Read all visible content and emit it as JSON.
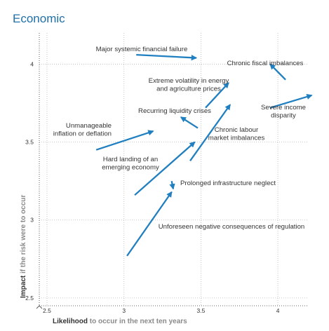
{
  "chart_data": {
    "type": "arrow-scatter",
    "title": "Economic",
    "xlabel": {
      "strong": "Likelihood",
      "soft": " to occur in the next ten years"
    },
    "ylabel": {
      "strong": "Impact",
      "soft": " if the risk were to occur"
    },
    "xlim": [
      2.45,
      4.2
    ],
    "ylim": [
      2.45,
      4.2
    ],
    "xticks": [
      "2.5",
      "3",
      "3.5",
      "4"
    ],
    "yticks": [
      "2.5",
      "3",
      "3.5",
      "4"
    ],
    "grid": true,
    "colors": {
      "arrow": "#1f7fc0",
      "title": "#1f6fa8"
    },
    "risks": [
      {
        "name": "Major systemic financial failure",
        "lines": [
          "Major systemic financial failure"
        ],
        "from": [
          3.08,
          4.06
        ],
        "to": [
          3.47,
          4.04
        ]
      },
      {
        "name": "Chronic fiscal imbalances",
        "lines": [
          "Chronic fiscal imbalances"
        ],
        "from": [
          4.05,
          3.9
        ],
        "to": [
          3.95,
          4.0
        ]
      },
      {
        "name": "Extreme volatility in energy and agriculture prices",
        "lines": [
          "Extreme volatility in energy",
          "and agriculture prices"
        ],
        "from": [
          3.53,
          3.72
        ],
        "to": [
          3.68,
          3.88
        ]
      },
      {
        "name": "Severe income disparity",
        "lines": [
          "Severe income",
          "disparity"
        ],
        "from": [
          3.95,
          3.72
        ],
        "to": [
          4.22,
          3.8
        ]
      },
      {
        "name": "Recurring liquidity crises",
        "lines": [
          "Recurring liquidity crises"
        ],
        "from": [
          3.48,
          3.59
        ],
        "to": [
          3.37,
          3.66
        ]
      },
      {
        "name": "Unmanageable inflation or deflation",
        "lines": [
          "Unmanageable",
          "inflation or deflation"
        ],
        "from": [
          2.82,
          3.45
        ],
        "to": [
          3.19,
          3.57
        ]
      },
      {
        "name": "Chronic labour market imbalances",
        "lines": [
          "Chronic labour",
          "market imbalances"
        ],
        "from": [
          3.43,
          3.38
        ],
        "to": [
          3.69,
          3.74
        ]
      },
      {
        "name": "Hard landing of an emerging economy",
        "lines": [
          "Hard landing of an",
          "emerging economy"
        ],
        "from": [
          3.07,
          3.16
        ],
        "to": [
          3.46,
          3.5
        ]
      },
      {
        "name": "Prolonged infrastructure neglect",
        "lines": [
          "Prolonged infrastructure neglect"
        ],
        "from": [
          3.31,
          3.25
        ],
        "to": [
          3.32,
          3.2
        ]
      },
      {
        "name": "Unforeseen negative consequences of regulation",
        "lines": [
          "Unforeseen negative consequences of regulation"
        ],
        "from": [
          3.02,
          2.77
        ],
        "to": [
          3.31,
          3.18
        ]
      }
    ]
  }
}
